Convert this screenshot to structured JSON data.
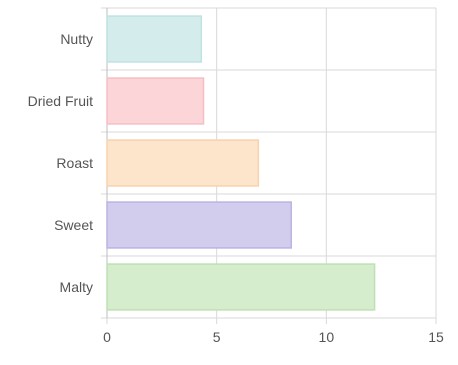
{
  "chart_data": {
    "type": "bar",
    "orientation": "horizontal",
    "categories": [
      "Nutty",
      "Dried Fruit",
      "Roast",
      "Sweet",
      "Malty"
    ],
    "values": [
      4.3,
      4.4,
      6.9,
      8.4,
      12.2
    ],
    "xlim": [
      0,
      15
    ],
    "xticks": [
      "0",
      "5",
      "10",
      "15"
    ],
    "grid": true,
    "title": "",
    "xlabel": "",
    "ylabel": "",
    "colors": {
      "fills": [
        "#d5ecec",
        "#fbd5d8",
        "#fde5cc",
        "#d2cdec",
        "#d5eccd"
      ],
      "strokes": [
        "#bfe2e2",
        "#f5bfc5",
        "#f7d3ad",
        "#bbb3e3",
        "#bfe0b4"
      ],
      "grid": "#d9d9d9",
      "axis": "#bdbdbd"
    }
  }
}
